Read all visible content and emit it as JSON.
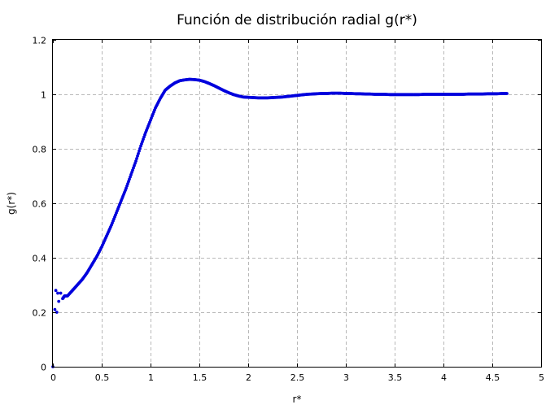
{
  "chart_data": {
    "type": "scatter",
    "title": "Función de distribución radial g(r*)",
    "xlabel": "r*",
    "ylabel": "g(r*)",
    "xlim": [
      0,
      5
    ],
    "ylim": [
      0,
      1.2
    ],
    "xticks": [
      "0",
      "0.5",
      "1",
      "1.5",
      "2",
      "2.5",
      "3",
      "3.5",
      "4",
      "4.5",
      "5"
    ],
    "yticks": [
      "0",
      "0.2",
      "0.4",
      "0.6",
      "0.8",
      "1",
      "1.2"
    ],
    "grid": true,
    "marker_color": "#0000dd",
    "series": [
      {
        "x": [
          0.0,
          0.02,
          0.03,
          0.04,
          0.05,
          0.06,
          0.08,
          0.1,
          0.12,
          0.15,
          0.2,
          0.25,
          0.3,
          0.35,
          0.4,
          0.45,
          0.5,
          0.55,
          0.6,
          0.65,
          0.7,
          0.75,
          0.8,
          0.85,
          0.9,
          0.95,
          1.0,
          1.05,
          1.1,
          1.15,
          1.2,
          1.25,
          1.3,
          1.35,
          1.4,
          1.45,
          1.5,
          1.55,
          1.6,
          1.65,
          1.7,
          1.75,
          1.8,
          1.85,
          1.9,
          1.95,
          2.0,
          2.05,
          2.1,
          2.15,
          2.2,
          2.25,
          2.3,
          2.35,
          2.4,
          2.45,
          2.5,
          2.55,
          2.6,
          2.65,
          2.7,
          2.75,
          2.8,
          2.85,
          2.9,
          2.95,
          3.0,
          3.05,
          3.1,
          3.15,
          3.2,
          3.25,
          3.3,
          3.35,
          3.4,
          3.45,
          3.5,
          3.55,
          3.6,
          3.65,
          3.7,
          3.75,
          3.8,
          3.85,
          3.9,
          3.95,
          4.0,
          4.05,
          4.1,
          4.15,
          4.2,
          4.25,
          4.3,
          4.35,
          4.4,
          4.45,
          4.5,
          4.55,
          4.6,
          4.65
        ],
        "values": [
          0.0,
          0.21,
          0.28,
          0.2,
          0.27,
          0.24,
          0.27,
          0.25,
          0.26,
          0.26,
          0.28,
          0.3,
          0.32,
          0.345,
          0.375,
          0.405,
          0.44,
          0.48,
          0.52,
          0.565,
          0.61,
          0.655,
          0.705,
          0.755,
          0.81,
          0.86,
          0.905,
          0.95,
          0.985,
          1.015,
          1.03,
          1.042,
          1.05,
          1.053,
          1.055,
          1.054,
          1.052,
          1.047,
          1.04,
          1.032,
          1.023,
          1.014,
          1.006,
          0.999,
          0.994,
          0.99,
          0.989,
          0.988,
          0.987,
          0.987,
          0.987,
          0.988,
          0.989,
          0.99,
          0.992,
          0.994,
          0.996,
          0.998,
          1.0,
          1.001,
          1.002,
          1.003,
          1.003,
          1.004,
          1.004,
          1.004,
          1.003,
          1.003,
          1.002,
          1.002,
          1.001,
          1.001,
          1.0,
          1.0,
          1.0,
          0.999,
          0.999,
          0.999,
          0.999,
          0.999,
          0.999,
          0.999,
          1.0,
          1.0,
          1.0,
          1.0,
          1.0,
          1.0,
          1.0,
          1.0,
          1.0,
          1.001,
          1.001,
          1.001,
          1.001,
          1.002,
          1.002,
          1.002,
          1.003,
          1.003
        ]
      }
    ]
  }
}
